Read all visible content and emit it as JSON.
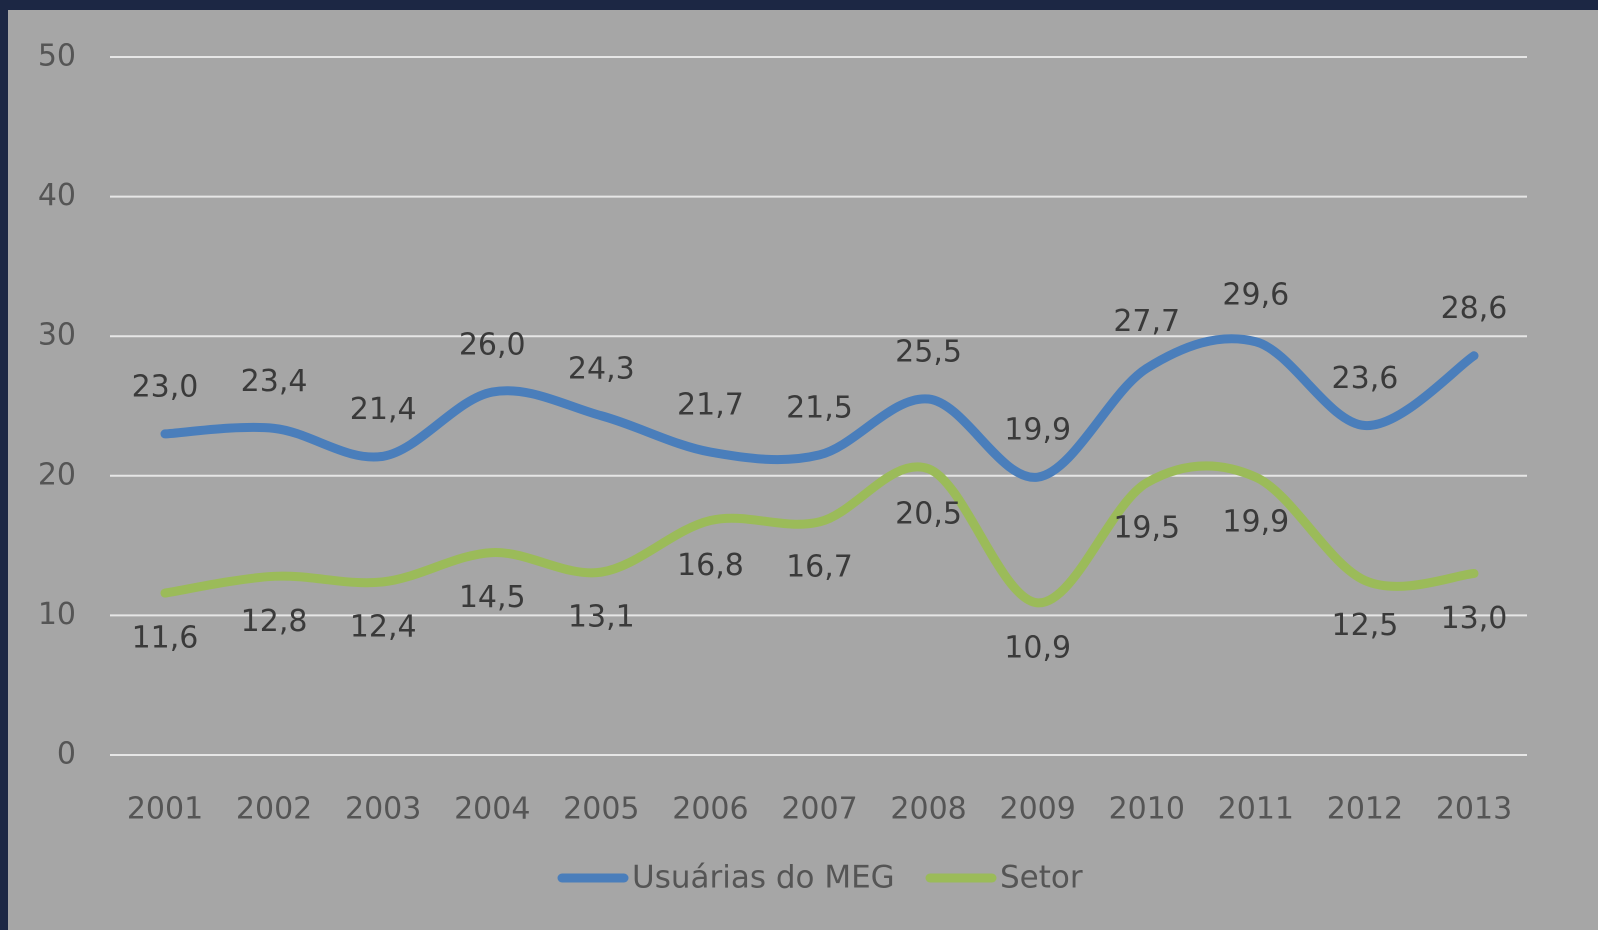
{
  "chart_data": {
    "type": "line",
    "categories": [
      "2001",
      "2002",
      "2003",
      "2004",
      "2005",
      "2006",
      "2007",
      "2008",
      "2009",
      "2010",
      "2011",
      "2012",
      "2013"
    ],
    "series": [
      {
        "name": "Usuárias do MEG",
        "color": "#4a7ebb",
        "values": [
          23.0,
          23.4,
          21.4,
          26.0,
          24.3,
          21.7,
          21.5,
          25.5,
          19.9,
          27.7,
          29.6,
          23.6,
          28.6
        ],
        "value_labels": [
          "23,0",
          "23,4",
          "21,4",
          "26,0",
          "24,3",
          "21,7",
          "21,5",
          "25,5",
          "19,9",
          "27,7",
          "29,6",
          "23,6",
          "28,6"
        ]
      },
      {
        "name": "Setor",
        "color": "#9bbb59",
        "values": [
          11.6,
          12.8,
          12.4,
          14.5,
          13.1,
          16.8,
          16.7,
          20.5,
          10.9,
          19.5,
          19.9,
          12.5,
          13.0
        ],
        "value_labels": [
          "11,6",
          "12,8",
          "12,4",
          "14,5",
          "13,1",
          "16,8",
          "16,7",
          "20,5",
          "10,9",
          "19,5",
          "19,9",
          "12,5",
          "13,0"
        ]
      }
    ],
    "ylim": [
      0,
      50
    ],
    "yticks": [
      0,
      10,
      20,
      30,
      40,
      50
    ],
    "grid": true,
    "legend": "bottom"
  }
}
